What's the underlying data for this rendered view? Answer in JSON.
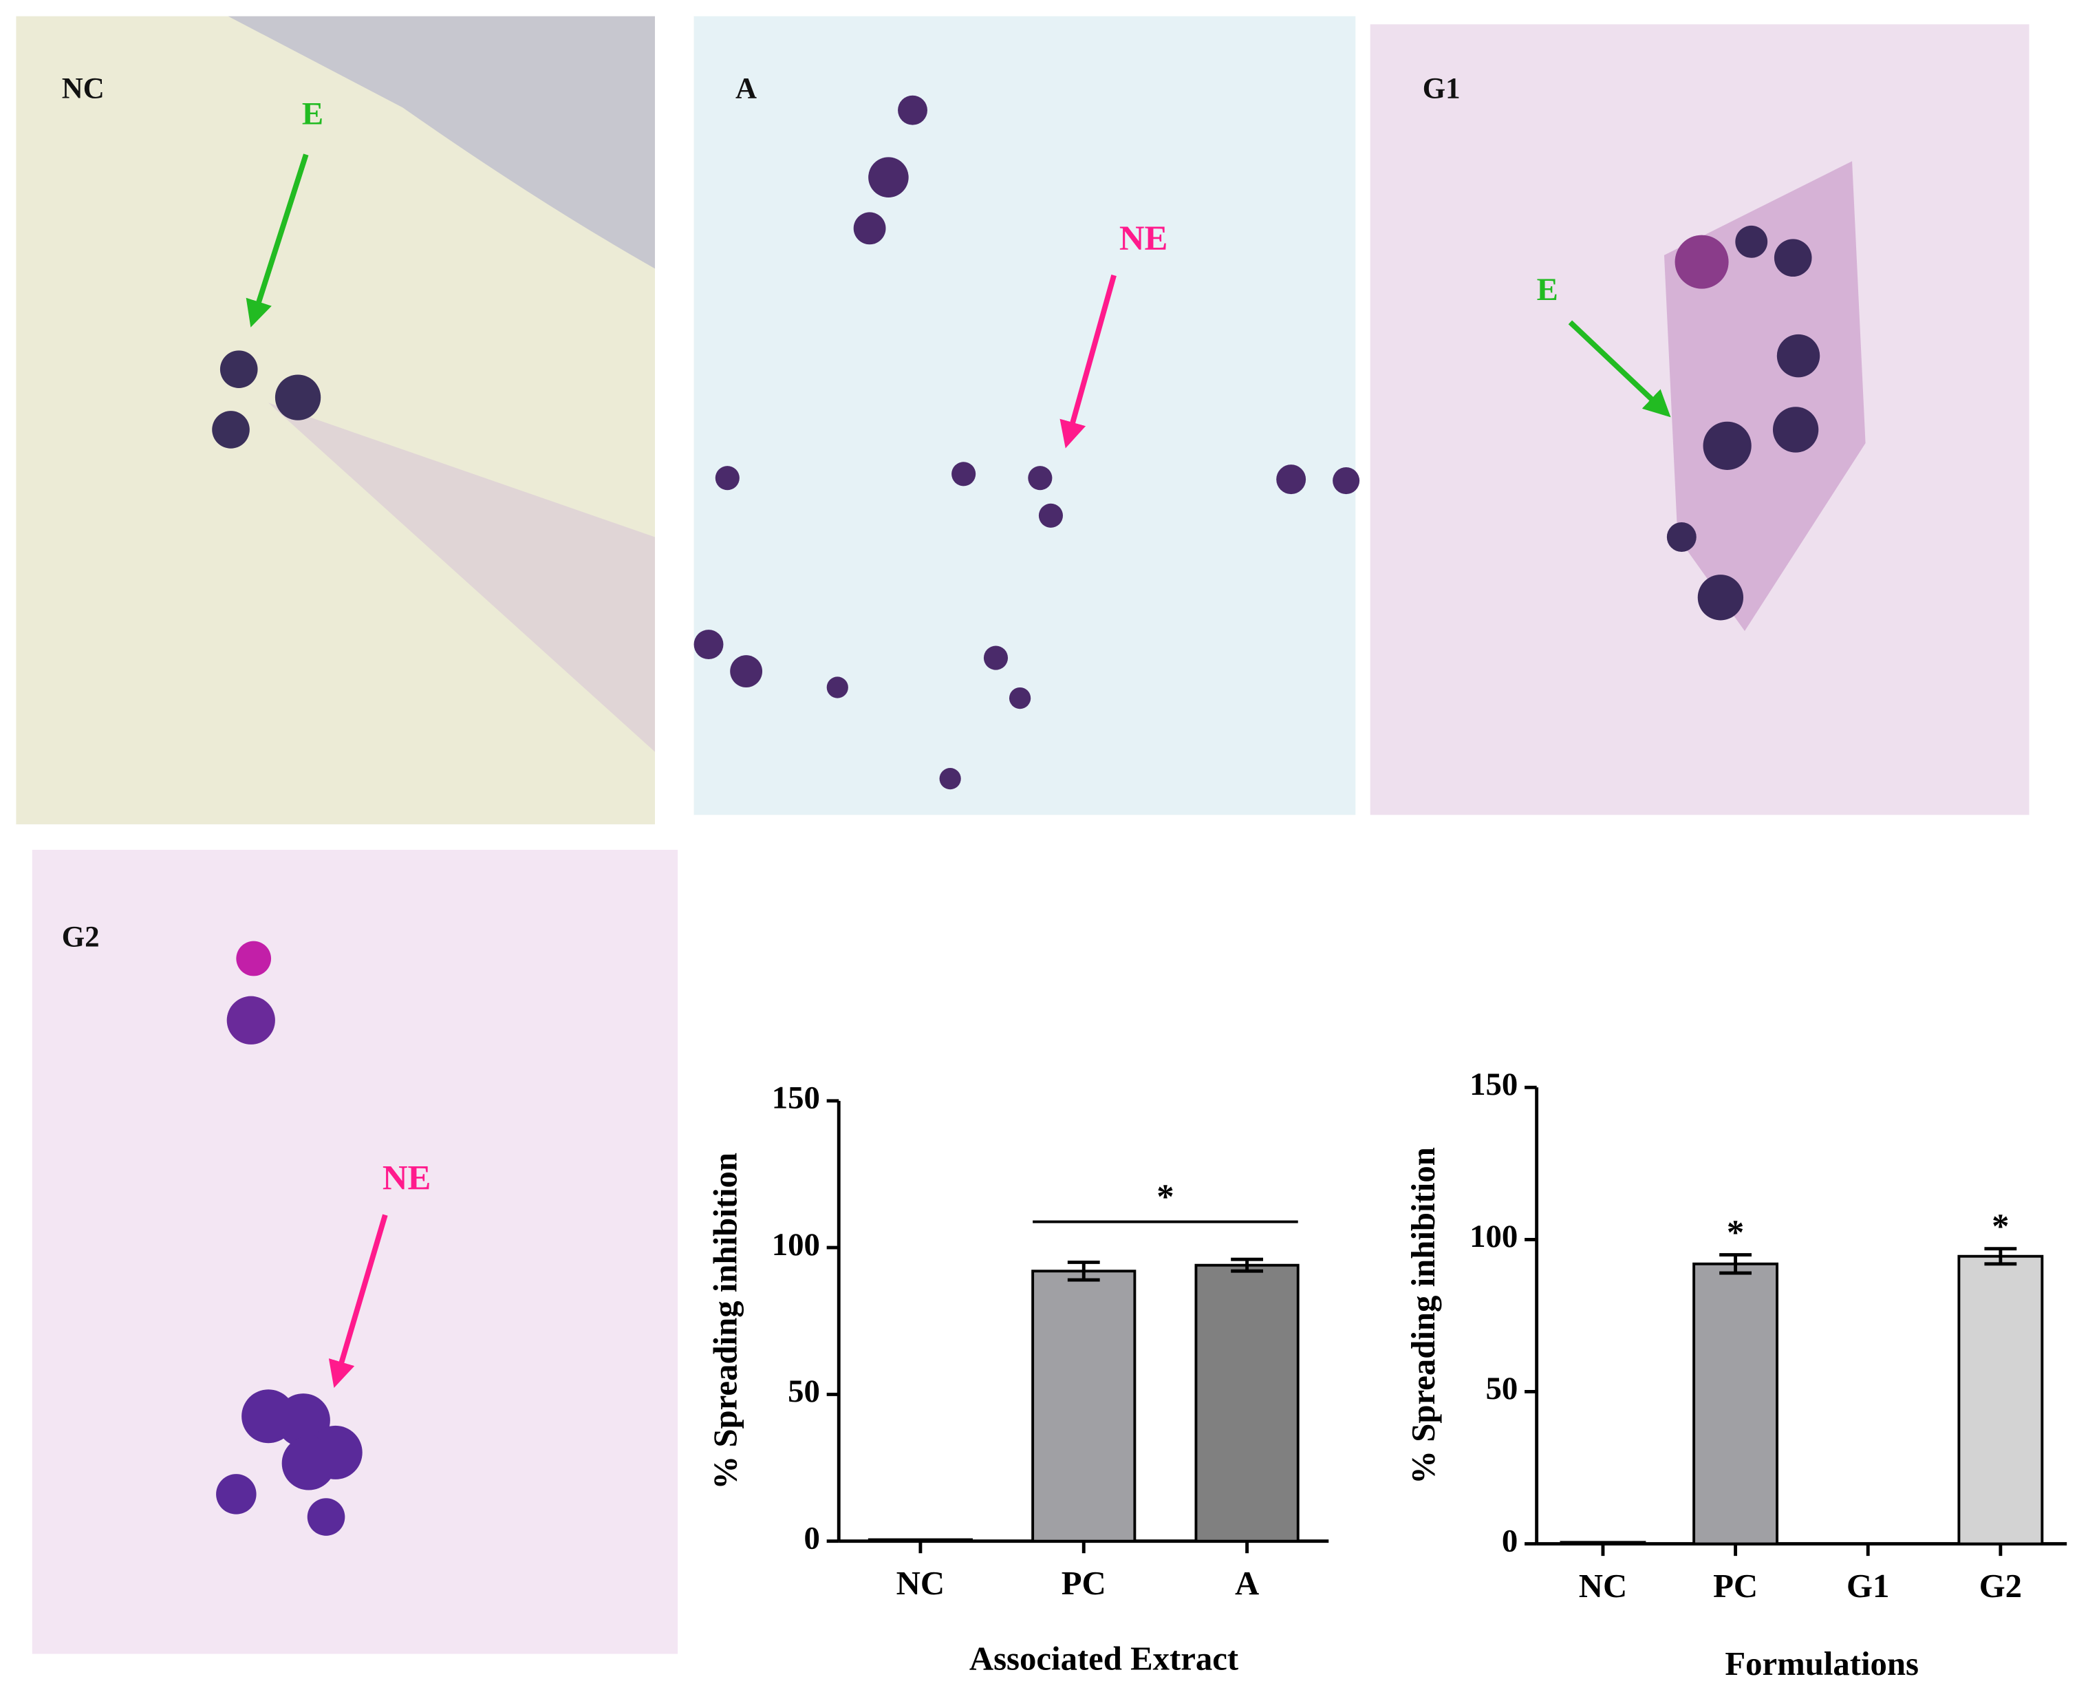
{
  "panels": [
    {
      "label": "NC",
      "arrow_label": "E"
    },
    {
      "label": "A",
      "arrow_label": "NE"
    },
    {
      "label": "G1",
      "arrow_label": "E"
    },
    {
      "label": "G2",
      "arrow_label": "NE"
    }
  ],
  "chart_data": [
    {
      "type": "bar",
      "y_label": "% Spreading inhibition",
      "x_label": "Associated Extract",
      "categories": [
        "NC",
        "PC",
        "A"
      ],
      "values": [
        0.5,
        92,
        94
      ],
      "errors": [
        0,
        3,
        2
      ],
      "colors": [
        "#a0a0a4",
        "#a0a0a4",
        "#808080"
      ],
      "ylim": [
        0,
        150
      ],
      "yticks": [
        0,
        50,
        100,
        150
      ],
      "annotations": [
        {
          "text": "*",
          "from": 1,
          "to": 2
        }
      ]
    },
    {
      "type": "bar",
      "y_label": "% Spreading inhibition",
      "x_label": "Formulations",
      "categories": [
        "NC",
        "PC",
        "G1",
        "G2"
      ],
      "values": [
        0.5,
        92,
        0,
        94.5
      ],
      "errors": [
        0,
        3,
        0,
        2.5
      ],
      "colors": [
        "#a0a0a4",
        "#a0a0a4",
        "#a0a0a4",
        "#d3d3d3"
      ],
      "ylim": [
        0,
        150
      ],
      "yticks": [
        0,
        50,
        100,
        150
      ],
      "annotations": [
        {
          "text": "*",
          "from": 1,
          "to": 1
        },
        {
          "text": "*",
          "from": 3,
          "to": 3
        }
      ]
    }
  ]
}
